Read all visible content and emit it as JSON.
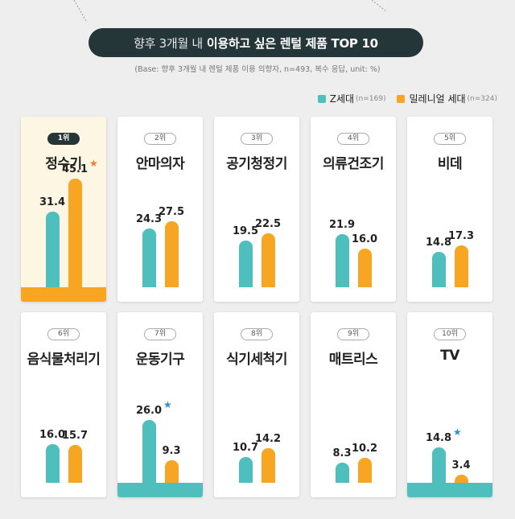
{
  "title": {
    "pre": "향후 3개월 내",
    "highlight": "이용하고 싶은 렌털 제품 TOP 10"
  },
  "subtitle": "(Base: 향후 3개월 내 렌털 제품 이용 의향자, n=493, 복수 응답, unit: %)",
  "legend": [
    {
      "label": "Z세대",
      "n": "(n=169)",
      "color": "#4fbfbd"
    },
    {
      "label": "밀레니얼 세대",
      "n": "(n=324)",
      "color": "#f6a623"
    }
  ],
  "colors": {
    "z": "#4fbfbd",
    "millennial": "#f6a623",
    "star_orange": "#f07a2e",
    "star_blue": "#2d8fd8"
  },
  "chart_data": {
    "type": "bar",
    "categories": [
      "정수기",
      "안마의자",
      "공기청정기",
      "의류건조기",
      "비데",
      "음식물처리기",
      "운동기구",
      "식기세척기",
      "매트리스",
      "TV"
    ],
    "ranks": [
      "1위",
      "2위",
      "3위",
      "4위",
      "5위",
      "6위",
      "7위",
      "8위",
      "9위",
      "10위"
    ],
    "series": [
      {
        "name": "Z세대",
        "values": [
          31.4,
          24.3,
          19.5,
          21.9,
          14.8,
          16.0,
          26.0,
          10.7,
          8.3,
          14.8
        ]
      },
      {
        "name": "밀레니얼 세대",
        "values": [
          45.1,
          27.5,
          22.5,
          16.0,
          17.3,
          15.7,
          9.3,
          14.2,
          10.2,
          3.4
        ]
      }
    ],
    "value_labels": [
      [
        "31.4",
        "45.1"
      ],
      [
        "24.3",
        "27.5"
      ],
      [
        "19.5",
        "22.5"
      ],
      [
        "21.9",
        "16.0"
      ],
      [
        "14.8",
        "17.3"
      ],
      [
        "16.0",
        "15.7"
      ],
      [
        "26.0",
        "9.3"
      ],
      [
        "10.7",
        "14.2"
      ],
      [
        "8.3",
        "10.2"
      ],
      [
        "14.8",
        "3.4"
      ]
    ],
    "highlights": [
      {
        "index": 0,
        "series": 1,
        "base_color": "#f6a623"
      },
      {
        "index": 6,
        "series": 0,
        "base_color": "#4fbfbd"
      },
      {
        "index": 9,
        "series": 0,
        "base_color": "#4fbfbd"
      }
    ],
    "ylim": [
      0,
      50
    ]
  }
}
